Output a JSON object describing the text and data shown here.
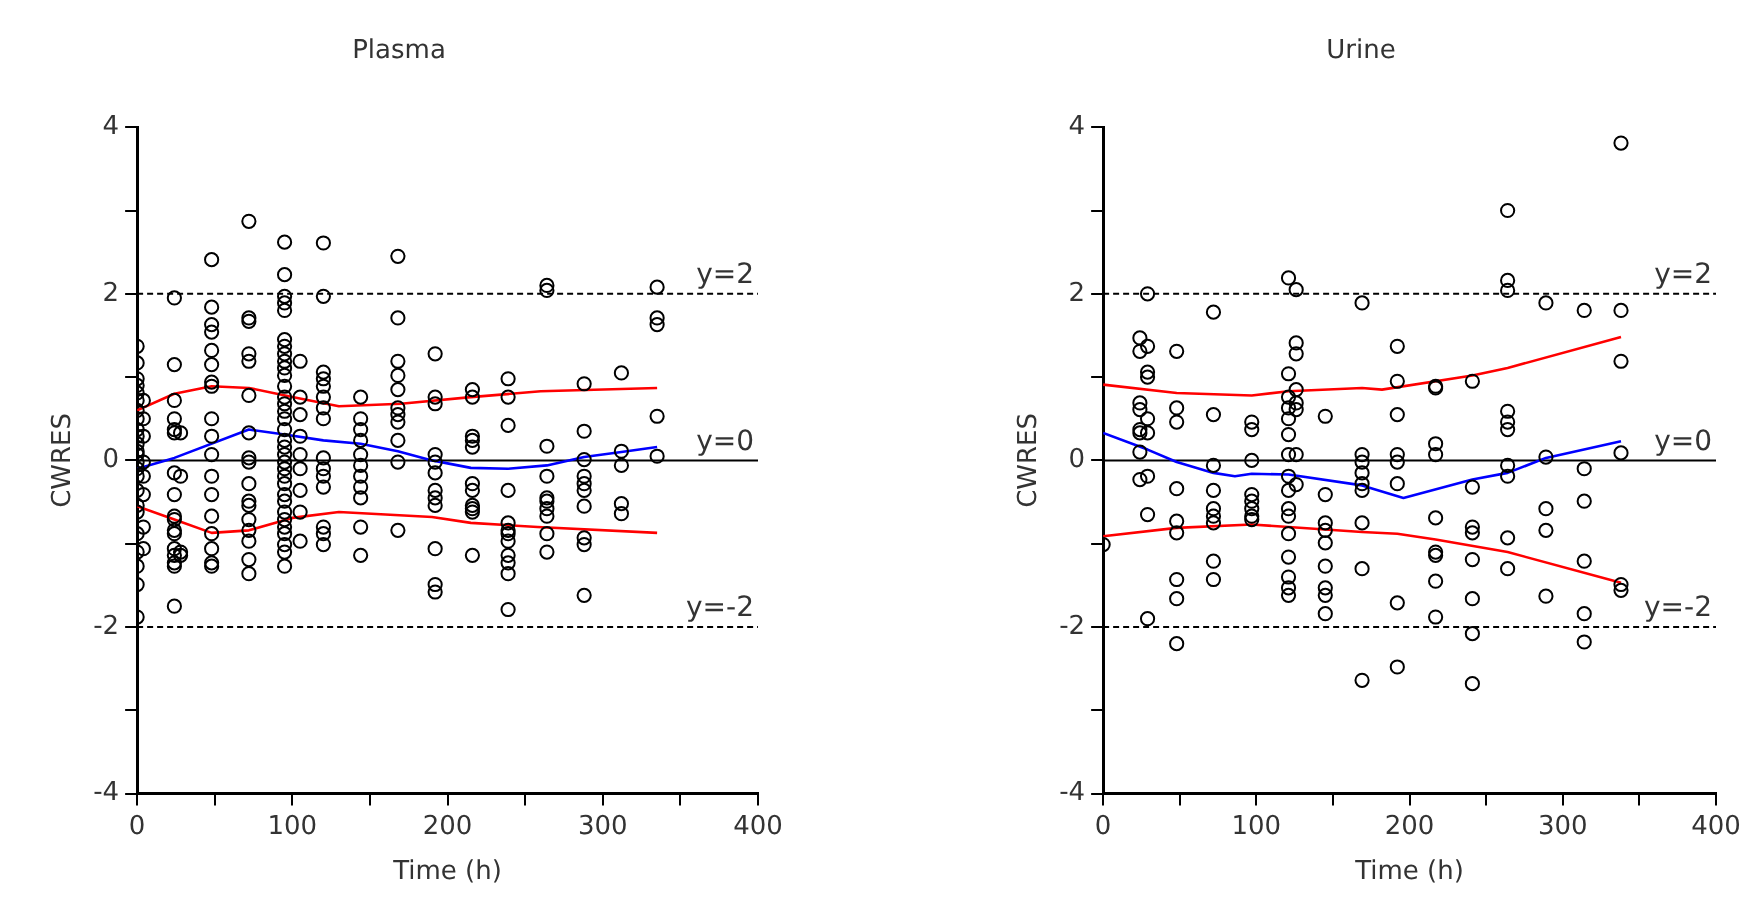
{
  "chart_data": [
    {
      "type": "scatter",
      "title": "Plasma",
      "xlabel": "Time (h)",
      "ylabel": "CWRES",
      "xlim": [
        0,
        400
      ],
      "ylim": [
        -4,
        4
      ],
      "xticks": [
        0,
        {
          "value": 50,
          "label": null
        },
        100,
        {
          "value": 150,
          "label": null
        },
        200,
        {
          "value": 250,
          "label": null
        },
        300,
        {
          "value": 350,
          "label": null
        },
        400
      ],
      "yticks": [
        -4,
        {
          "value": -3,
          "label": null
        },
        -2,
        {
          "value": -1,
          "label": null
        },
        0,
        {
          "value": 1,
          "label": null
        },
        2,
        {
          "value": 3,
          "label": null
        },
        4
      ],
      "grid": false,
      "legend": false,
      "ref_lines": [
        {
          "axis": "y",
          "value": 2,
          "label": "y=2",
          "line_style": "dashed",
          "color": "#000000"
        },
        {
          "axis": "y",
          "value": 0,
          "label": "y=0",
          "line_style": "solid",
          "color": "#000000"
        },
        {
          "axis": "y",
          "value": -2,
          "label": "y=-2",
          "line_style": "dashed",
          "color": "#000000"
        }
      ],
      "series": [
        {
          "type": "scatter",
          "marker": "circle",
          "color": "#000000",
          "x": [
            0,
            0,
            0,
            0,
            0,
            0,
            0,
            0,
            0,
            0,
            0,
            0,
            0,
            0,
            0,
            0,
            0,
            0,
            0,
            0,
            0,
            0,
            0,
            0,
            4,
            4,
            4,
            4,
            4,
            4,
            4,
            4,
            24,
            24,
            24,
            24,
            24,
            24,
            24,
            24,
            24,
            24,
            24,
            24,
            24,
            24,
            24,
            24,
            24,
            28,
            28,
            28,
            28,
            48,
            48,
            48,
            48,
            48,
            48,
            48,
            48,
            48,
            48,
            48,
            48,
            48,
            48,
            48,
            48,
            48,
            48,
            72,
            72,
            72,
            72,
            72,
            72,
            72,
            72,
            72,
            72,
            72,
            72,
            72,
            72,
            72,
            72,
            72,
            95,
            95,
            95,
            95,
            95,
            95,
            95,
            95,
            95,
            95,
            95,
            95,
            95,
            95,
            95,
            95,
            95,
            95,
            95,
            95,
            95,
            95,
            95,
            95,
            95,
            95,
            95,
            95,
            95,
            95,
            95,
            95,
            95,
            105,
            105,
            105,
            105,
            105,
            105,
            105,
            105,
            105,
            120,
            120,
            120,
            120,
            120,
            120,
            120,
            120,
            120,
            120,
            120,
            120,
            120,
            120,
            120,
            144,
            144,
            144,
            144,
            144,
            144,
            144,
            144,
            144,
            144,
            144,
            168,
            168,
            168,
            168,
            168,
            168,
            168,
            168,
            168,
            168,
            168,
            192,
            192,
            192,
            192,
            192,
            192,
            192,
            192,
            192,
            192,
            192,
            192,
            216,
            216,
            216,
            216,
            216,
            216,
            216,
            216,
            216,
            216,
            216,
            239,
            239,
            239,
            239,
            239,
            239,
            239,
            239,
            239,
            239,
            239,
            239,
            264,
            264,
            264,
            264,
            264,
            264,
            264,
            264,
            264,
            264,
            288,
            288,
            288,
            288,
            288,
            288,
            288,
            288,
            288,
            288,
            312,
            312,
            312,
            312,
            312,
            335,
            335,
            335,
            335,
            335
          ],
          "values": [
            1.37,
            1.17,
            0.98,
            0.9,
            0.81,
            0.72,
            0.6,
            0.5,
            0.37,
            0.29,
            0.2,
            0.11,
            0.07,
            -0.02,
            -0.1,
            -0.19,
            -0.36,
            -0.54,
            -0.62,
            -0.88,
            -1.1,
            -1.27,
            -1.49,
            -1.88,
            0.72,
            0.5,
            0.29,
            -0.02,
            -0.19,
            -0.41,
            -0.8,
            -1.06,
            1.95,
            1.15,
            0.72,
            0.5,
            0.37,
            0.33,
            -0.15,
            -0.41,
            -0.67,
            -0.71,
            -0.84,
            -0.88,
            -1.06,
            -1.14,
            -1.23,
            -1.27,
            -1.75,
            0.33,
            -0.19,
            -1.1,
            -1.14,
            2.41,
            1.84,
            1.63,
            1.54,
            1.32,
            1.15,
            0.94,
            0.89,
            0.5,
            0.29,
            0.07,
            -0.19,
            -0.41,
            -0.67,
            -0.88,
            -1.06,
            -1.23,
            -1.27,
            2.87,
            1.71,
            1.67,
            1.28,
            1.19,
            0.78,
            0.33,
            0.03,
            -0.02,
            -0.28,
            -0.49,
            -0.54,
            -0.71,
            -0.84,
            -0.97,
            -1.19,
            -1.36,
            2.62,
            2.23,
            1.97,
            1.89,
            1.8,
            1.45,
            1.37,
            1.28,
            1.19,
            1.11,
            1.02,
            0.89,
            0.76,
            0.68,
            0.59,
            0.5,
            0.37,
            0.24,
            0.16,
            0.07,
            -0.02,
            -0.1,
            -0.19,
            -0.28,
            -0.41,
            -0.49,
            -0.62,
            -0.71,
            -0.8,
            -0.88,
            -1.01,
            -1.1,
            -1.27,
            1.19,
            0.76,
            0.55,
            0.29,
            0.07,
            -0.1,
            -0.36,
            -0.62,
            -0.97,
            2.61,
            1.97,
            1.06,
            0.98,
            0.89,
            0.76,
            0.63,
            0.5,
            0.03,
            -0.1,
            -0.19,
            -0.32,
            -0.8,
            -0.88,
            -1.01,
            0.76,
            0.5,
            0.37,
            0.24,
            0.07,
            -0.06,
            -0.19,
            -0.32,
            -0.45,
            -0.8,
            -1.14,
            2.45,
            1.71,
            1.19,
            1.02,
            0.85,
            0.63,
            0.55,
            0.46,
            0.24,
            -0.02,
            -0.84,
            1.28,
            0.76,
            0.68,
            0.07,
            -0.02,
            -0.15,
            -0.36,
            -0.45,
            -0.54,
            -1.06,
            -1.49,
            -1.58,
            0.85,
            0.76,
            0.29,
            0.24,
            0.16,
            -0.28,
            -0.36,
            -0.54,
            -0.58,
            -0.62,
            -1.14,
            0.98,
            0.76,
            0.42,
            -0.36,
            -0.75,
            -0.84,
            -0.88,
            -0.97,
            -1.14,
            -1.23,
            -1.36,
            -1.79,
            2.1,
            2.04,
            0.17,
            -0.19,
            -0.45,
            -0.49,
            -0.58,
            -0.67,
            -0.88,
            -1.1,
            0.92,
            0.35,
            0.01,
            -0.19,
            -0.28,
            -0.36,
            -0.55,
            -0.93,
            -1.01,
            -1.62,
            1.05,
            0.11,
            -0.06,
            -0.52,
            -0.64,
            2.08,
            1.71,
            1.63,
            0.53,
            0.05
          ]
        },
        {
          "type": "line",
          "marker": "none",
          "color": "#ff0000",
          "x": [
            0,
            24,
            48,
            72,
            100,
            130,
            170,
            215,
            260,
            335
          ],
          "values": [
            0.6,
            0.8,
            0.89,
            0.87,
            0.76,
            0.65,
            0.68,
            0.76,
            0.83,
            0.87
          ]
        },
        {
          "type": "line",
          "marker": "none",
          "color": "#ff0000",
          "x": [
            0,
            24,
            48,
            72,
            100,
            130,
            190,
            215,
            258,
            335
          ],
          "values": [
            -0.55,
            -0.71,
            -0.87,
            -0.84,
            -0.69,
            -0.62,
            -0.68,
            -0.75,
            -0.8,
            -0.87
          ]
        },
        {
          "type": "line",
          "marker": "none",
          "color": "#0000ff",
          "x": [
            0,
            24,
            72,
            95,
            120,
            144,
            168,
            190,
            215,
            239,
            264,
            288,
            312,
            335
          ],
          "values": [
            -0.1,
            0.03,
            0.37,
            0.31,
            0.24,
            0.2,
            0.11,
            0,
            -0.09,
            -0.1,
            -0.06,
            0.04,
            0.1,
            0.16
          ]
        }
      ]
    },
    {
      "type": "scatter",
      "title": "Urine",
      "xlabel": "Time (h)",
      "ylabel": "CWRES",
      "xlim": [
        0,
        400
      ],
      "ylim": [
        -4,
        4
      ],
      "xticks": [
        0,
        {
          "value": 50,
          "label": null
        },
        100,
        {
          "value": 150,
          "label": null
        },
        200,
        {
          "value": 250,
          "label": null
        },
        300,
        {
          "value": 350,
          "label": null
        },
        400
      ],
      "yticks": [
        -4,
        {
          "value": -3,
          "label": null
        },
        -2,
        {
          "value": -1,
          "label": null
        },
        0,
        {
          "value": 1,
          "label": null
        },
        2,
        {
          "value": 3,
          "label": null
        },
        4
      ],
      "grid": false,
      "legend": false,
      "ref_lines": [
        {
          "axis": "y",
          "value": 2,
          "label": "y=2",
          "line_style": "dashed",
          "color": "#000000"
        },
        {
          "axis": "y",
          "value": 0,
          "label": "y=0",
          "line_style": "solid",
          "color": "#000000"
        },
        {
          "axis": "y",
          "value": -2,
          "label": "y=-2",
          "line_style": "dashed",
          "color": "#000000"
        }
      ],
      "series": [
        {
          "type": "scatter",
          "marker": "circle",
          "color": "#000000",
          "x": [
            0,
            24,
            24,
            24,
            24,
            24,
            24,
            24,
            24,
            29,
            29,
            29,
            29,
            29,
            29,
            29,
            29,
            29,
            48,
            48,
            48,
            48,
            48,
            48,
            48,
            48,
            48,
            72,
            72,
            72,
            72,
            72,
            72,
            72,
            72,
            72,
            97,
            97,
            97,
            97,
            97,
            97,
            97,
            97,
            121,
            121,
            121,
            121,
            121,
            121,
            121,
            121,
            121,
            121,
            121,
            121,
            121,
            121,
            121,
            121,
            126,
            126,
            126,
            126,
            126,
            126,
            126,
            126,
            145,
            145,
            145,
            145,
            145,
            145,
            145,
            145,
            145,
            169,
            169,
            169,
            169,
            169,
            169,
            169,
            169,
            169,
            192,
            192,
            192,
            192,
            192,
            192,
            192,
            192,
            217,
            217,
            217,
            217,
            217,
            217,
            217,
            217,
            217,
            241,
            241,
            241,
            241,
            241,
            241,
            241,
            241,
            264,
            264,
            264,
            264,
            264,
            264,
            264,
            264,
            264,
            264,
            289,
            289,
            289,
            289,
            289,
            314,
            314,
            314,
            314,
            314,
            314,
            338,
            338,
            338,
            338,
            338,
            338
          ],
          "values": [
            -1.01,
            1.47,
            1.31,
            0.69,
            0.61,
            0.37,
            0.33,
            0.1,
            -0.23,
            2,
            1.37,
            1.06,
            1.0,
            0.5,
            0.33,
            -0.19,
            -0.65,
            -1.9,
            1.31,
            0.63,
            0.46,
            -0.34,
            -0.73,
            -0.87,
            -1.43,
            -1.66,
            -2.2,
            1.78,
            0.55,
            -0.06,
            -0.36,
            -0.58,
            -0.67,
            -0.75,
            -1.21,
            -1.43,
            0.46,
            0.37,
            0,
            -0.41,
            -0.49,
            -0.58,
            -0.67,
            -0.71,
            2.19,
            1.04,
            0.76,
            0.63,
            0.5,
            0.31,
            0.07,
            -0.19,
            -0.36,
            -0.58,
            -0.67,
            -0.88,
            -1.16,
            -1.4,
            -1.53,
            -1.62,
            2.05,
            1.41,
            1.28,
            0.85,
            0.69,
            0.61,
            0.07,
            -0.29,
            0.53,
            -0.41,
            -0.75,
            -0.84,
            -0.99,
            -1.27,
            -1.53,
            -1.62,
            -1.84,
            1.89,
            0.07,
            -0.02,
            -0.15,
            -0.28,
            -0.36,
            -0.75,
            -1.3,
            -2.64,
            1.37,
            0.95,
            0.55,
            0.07,
            -0.02,
            -0.28,
            -1.71,
            -2.48,
            0.89,
            0.87,
            0.2,
            0.07,
            -0.69,
            -1.1,
            -1.14,
            -1.45,
            -1.88,
            0.95,
            -0.32,
            -0.8,
            -0.87,
            -1.19,
            -1.66,
            -2.08,
            -2.68,
            3.0,
            2.16,
            2.04,
            0.59,
            0.46,
            0.37,
            -0.06,
            -0.19,
            -0.93,
            -1.3,
            1.89,
            0.04,
            -0.58,
            -0.84,
            -1.63,
            1.8,
            -0.1,
            -0.49,
            -1.21,
            -1.84,
            -2.18,
            3.81,
            1.8,
            1.19,
            0.09,
            -1.49,
            -1.56
          ]
        },
        {
          "type": "line",
          "marker": "none",
          "color": "#ff0000",
          "x": [
            0,
            48,
            97,
            121,
            169,
            182,
            241,
            264,
            338
          ],
          "values": [
            0.91,
            0.81,
            0.78,
            0.83,
            0.87,
            0.85,
            1.02,
            1.11,
            1.48
          ]
        },
        {
          "type": "line",
          "marker": "none",
          "color": "#ff0000",
          "x": [
            0,
            48,
            97,
            121,
            169,
            192,
            217,
            264,
            338
          ],
          "values": [
            -0.91,
            -0.81,
            -0.77,
            -0.8,
            -0.86,
            -0.88,
            -0.95,
            -1.1,
            -1.47
          ]
        },
        {
          "type": "line",
          "marker": "none",
          "color": "#0000ff",
          "x": [
            0,
            29,
            48,
            72,
            86,
            97,
            121,
            169,
            196,
            241,
            264,
            289,
            338
          ],
          "values": [
            0.33,
            0.13,
            -0.02,
            -0.15,
            -0.19,
            -0.16,
            -0.17,
            -0.3,
            -0.45,
            -0.23,
            -0.15,
            0.03,
            0.23
          ]
        }
      ]
    }
  ]
}
